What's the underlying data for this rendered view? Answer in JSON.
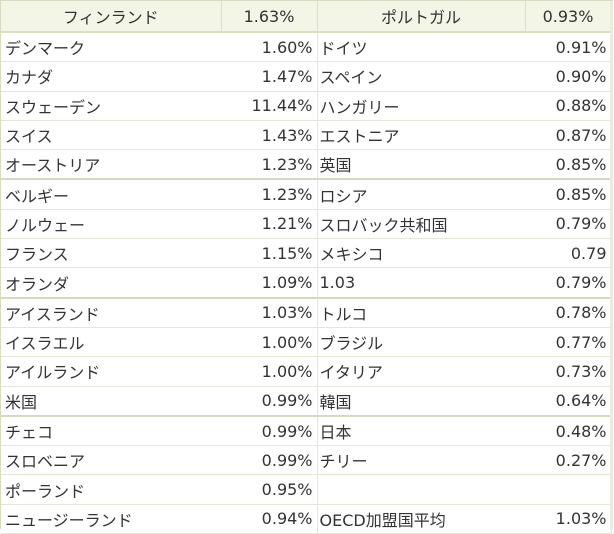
{
  "header": {
    "left_name": "フィンランド",
    "left_value": "1.63%",
    "right_name": "ポルトガル",
    "right_value": "0.93%"
  },
  "rows": [
    {
      "left_name": "デンマーク",
      "left_value": "1.60%",
      "right_name": "ドイツ",
      "right_value": "0.91%"
    },
    {
      "left_name": "カナダ",
      "left_value": "1.47%",
      "right_name": "スペイン",
      "right_value": "0.90%"
    },
    {
      "left_name": "スウェーデン",
      "left_value": "11.44%",
      "right_name": "ハンガリー",
      "right_value": "0.88%"
    },
    {
      "left_name": "スイス",
      "left_value": "1.43%",
      "right_name": "エストニア",
      "right_value": "0.87%"
    },
    {
      "left_name": "オーストリア",
      "left_value": "1.23%",
      "right_name": "英国",
      "right_value": "0.85%"
    },
    {
      "left_name": "ベルギー",
      "left_value": "1.23%",
      "right_name": "ロシア",
      "right_value": "0.85%"
    },
    {
      "left_name": "ノルウェー",
      "left_value": "1.21%",
      "right_name": "スロバック共和国",
      "right_value": "0.79%"
    },
    {
      "left_name": "フランス",
      "left_value": "1.15%",
      "right_name": "メキシコ",
      "right_value": "0.79"
    },
    {
      "left_name": "オランダ",
      "left_value": "1.09%",
      "right_name": "1.03",
      "right_value": "0.79%"
    },
    {
      "left_name": "アイスランド",
      "left_value": "1.03%",
      "right_name": "トルコ",
      "right_value": "0.78%"
    },
    {
      "left_name": "イスラエル",
      "left_value": "1.00%",
      "right_name": "ブラジル",
      "right_value": "0.77%"
    },
    {
      "left_name": "アイルランド",
      "left_value": "1.00%",
      "right_name": "イタリア",
      "right_value": "0.73%"
    },
    {
      "left_name": "米国",
      "left_value": "0.99%",
      "right_name": "韓国",
      "right_value": "0.64%"
    },
    {
      "left_name": "チェコ",
      "left_value": "0.99%",
      "right_name": "日本",
      "right_value": "0.48%"
    },
    {
      "left_name": "スロベニア",
      "left_value": "0.99%",
      "right_name": "チリー",
      "right_value": "0.27%"
    },
    {
      "left_name": "ポーランド",
      "left_value": "0.95%",
      "right_name": "",
      "right_value": ""
    },
    {
      "left_name": "ニュージーランド",
      "left_value": "0.94%",
      "right_name": "OECD加盟国平均",
      "right_value": "1.03%"
    }
  ]
}
